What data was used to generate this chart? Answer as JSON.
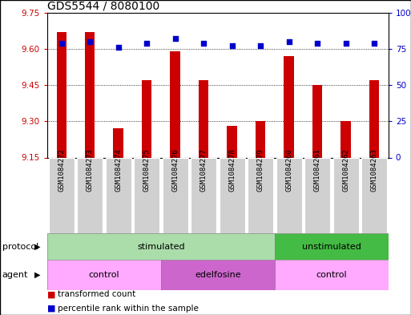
{
  "title": "GDS5544 / 8080100",
  "samples": [
    "GSM1084272",
    "GSM1084273",
    "GSM1084274",
    "GSM1084275",
    "GSM1084276",
    "GSM1084277",
    "GSM1084278",
    "GSM1084279",
    "GSM1084260",
    "GSM1084261",
    "GSM1084262",
    "GSM1084263"
  ],
  "bar_values": [
    9.67,
    9.67,
    9.27,
    9.47,
    9.59,
    9.47,
    9.28,
    9.3,
    9.57,
    9.45,
    9.3,
    9.47
  ],
  "percentile_values": [
    79,
    80,
    76,
    79,
    82,
    79,
    77,
    77,
    80,
    79,
    79,
    79
  ],
  "ylim_left": [
    9.15,
    9.75
  ],
  "ylim_right": [
    0,
    100
  ],
  "yticks_left": [
    9.15,
    9.3,
    9.45,
    9.6,
    9.75
  ],
  "yticks_right": [
    0,
    25,
    50,
    75,
    100
  ],
  "bar_color": "#cc0000",
  "dot_color": "#0000cc",
  "sample_box_color": "#d0d0d0",
  "protocol_groups": [
    {
      "label": "stimulated",
      "start": 0,
      "end": 8,
      "color": "#aaddaa"
    },
    {
      "label": "unstimulated",
      "start": 8,
      "end": 12,
      "color": "#44bb44"
    }
  ],
  "agent_groups": [
    {
      "label": "control",
      "start": 0,
      "end": 4,
      "color": "#ffaaff"
    },
    {
      "label": "edelfosine",
      "start": 4,
      "end": 8,
      "color": "#cc66cc"
    },
    {
      "label": "control",
      "start": 8,
      "end": 12,
      "color": "#ffaaff"
    }
  ],
  "legend_bar_label": "transformed count",
  "legend_dot_label": "percentile rank within the sample",
  "protocol_label": "protocol",
  "agent_label": "agent",
  "bar_bottom": 9.15,
  "bar_width": 0.35,
  "xticklabel_fontsize": 6.5,
  "title_fontsize": 10,
  "row_label_fontsize": 8,
  "row_text_fontsize": 8,
  "legend_fontsize": 7.5
}
